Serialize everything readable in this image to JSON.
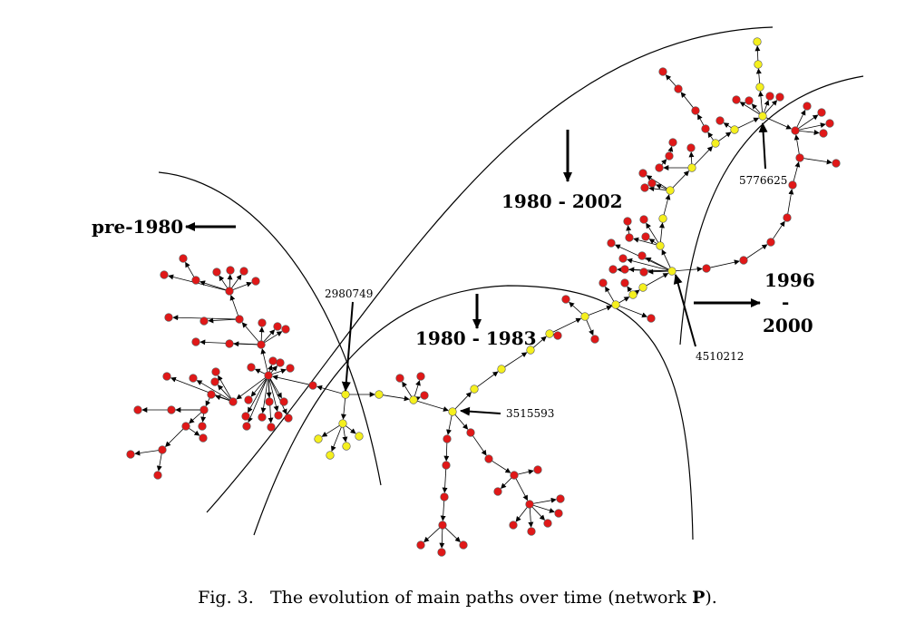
{
  "periods": {
    "pre": "pre-1980",
    "main": "1980 - 2002",
    "early": "1980 - 1983",
    "late_a": "1996",
    "late_dash": "-",
    "late_b": "2000"
  },
  "node_ids": {
    "a": "2980749",
    "b": "3515593",
    "c": "4510212",
    "d": "5776625"
  },
  "caption": {
    "number": "Fig. 3.",
    "text": "The evolution of main paths over time (network ",
    "symbol": "P",
    "suffix": ")."
  },
  "colors": {
    "main_path_node": "#f5f01e",
    "other_node": "#e01818",
    "edge": "#000000"
  }
}
